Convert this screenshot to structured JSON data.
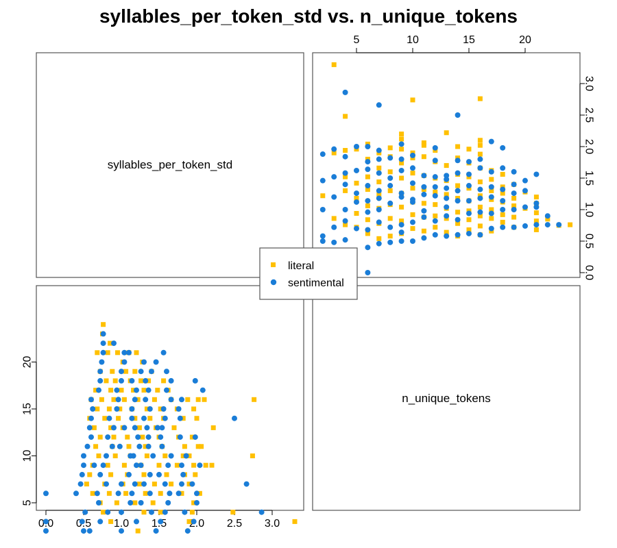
{
  "chart_data": {
    "type": "scatter",
    "title": "syllables_per_token_std vs. n_unique_tokens",
    "variables": [
      "syllables_per_token_std",
      "n_unique_tokens"
    ],
    "x_ticks": [
      0.0,
      0.5,
      1.0,
      1.5,
      2.0,
      2.5,
      3.0
    ],
    "y_ticks": [
      5,
      10,
      15,
      20
    ],
    "x_tick_labels": [
      "0.0",
      "0.5",
      "1.0",
      "1.5",
      "2.0",
      "2.5",
      "3.0"
    ],
    "y_tick_labels": [
      "5",
      "10",
      "15",
      "20"
    ],
    "xlim": [
      -0.1,
      3.4
    ],
    "ylim": [
      1,
      25
    ],
    "legend": {
      "placement": "center",
      "entries": [
        "literal",
        "sentimental"
      ]
    },
    "series": [
      {
        "name": "literal",
        "color": "#FFC000",
        "marker": "square",
        "points": [
          [
            0.76,
            24
          ],
          [
            0.75,
            23
          ],
          [
            0.85,
            22
          ],
          [
            0.68,
            21
          ],
          [
            0.82,
            21
          ],
          [
            0.95,
            21
          ],
          [
            1.1,
            21
          ],
          [
            1.2,
            21
          ],
          [
            1.02,
            20
          ],
          [
            1.28,
            20
          ],
          [
            0.72,
            19
          ],
          [
            0.88,
            19
          ],
          [
            1.06,
            19
          ],
          [
            1.18,
            19
          ],
          [
            1.4,
            19
          ],
          [
            0.8,
            18
          ],
          [
            0.92,
            18
          ],
          [
            1.12,
            18
          ],
          [
            1.26,
            18
          ],
          [
            1.36,
            18
          ],
          [
            1.56,
            18
          ],
          [
            0.66,
            17
          ],
          [
            0.86,
            17
          ],
          [
            1.0,
            17
          ],
          [
            1.16,
            17
          ],
          [
            1.3,
            17
          ],
          [
            1.48,
            17
          ],
          [
            1.62,
            17
          ],
          [
            0.6,
            16
          ],
          [
            0.74,
            16
          ],
          [
            0.9,
            16
          ],
          [
            1.04,
            16
          ],
          [
            1.22,
            16
          ],
          [
            1.44,
            16
          ],
          [
            1.66,
            16
          ],
          [
            1.88,
            16
          ],
          [
            2.02,
            16
          ],
          [
            2.1,
            16
          ],
          [
            2.76,
            16
          ],
          [
            0.68,
            15
          ],
          [
            0.84,
            15
          ],
          [
            0.98,
            15
          ],
          [
            1.14,
            15
          ],
          [
            1.34,
            15
          ],
          [
            1.52,
            15
          ],
          [
            1.74,
            15
          ],
          [
            1.96,
            15
          ],
          [
            0.58,
            14
          ],
          [
            0.78,
            14
          ],
          [
            0.96,
            14
          ],
          [
            1.18,
            14
          ],
          [
            1.38,
            14
          ],
          [
            1.56,
            14
          ],
          [
            1.82,
            14
          ],
          [
            2.0,
            14
          ],
          [
            0.64,
            13
          ],
          [
            0.86,
            13
          ],
          [
            1.02,
            13
          ],
          [
            1.24,
            13
          ],
          [
            1.46,
            13
          ],
          [
            1.7,
            13
          ],
          [
            2.22,
            13
          ],
          [
            0.72,
            12
          ],
          [
            0.9,
            12
          ],
          [
            1.08,
            12
          ],
          [
            1.28,
            12
          ],
          [
            1.5,
            12
          ],
          [
            1.76,
            12
          ],
          [
            1.94,
            12
          ],
          [
            0.66,
            11
          ],
          [
            0.88,
            11
          ],
          [
            1.1,
            11
          ],
          [
            1.32,
            11
          ],
          [
            1.54,
            11
          ],
          [
            1.84,
            11
          ],
          [
            2.02,
            11
          ],
          [
            2.06,
            11
          ],
          [
            0.7,
            10
          ],
          [
            0.92,
            10
          ],
          [
            1.12,
            10
          ],
          [
            1.34,
            10
          ],
          [
            1.58,
            10
          ],
          [
            1.82,
            10
          ],
          [
            1.9,
            10
          ],
          [
            2.74,
            10
          ],
          [
            0.62,
            9
          ],
          [
            0.82,
            9
          ],
          [
            1.04,
            9
          ],
          [
            1.26,
            9
          ],
          [
            1.5,
            9
          ],
          [
            1.74,
            9
          ],
          [
            1.96,
            9
          ],
          [
            2.12,
            9
          ],
          [
            2.2,
            9
          ],
          [
            0.58,
            8
          ],
          [
            0.86,
            8
          ],
          [
            1.08,
            8
          ],
          [
            1.3,
            8
          ],
          [
            1.6,
            8
          ],
          [
            1.84,
            8
          ],
          [
            1.98,
            8
          ],
          [
            0.54,
            7
          ],
          [
            0.78,
            7
          ],
          [
            1.02,
            7
          ],
          [
            1.24,
            7
          ],
          [
            1.44,
            7
          ],
          [
            1.66,
            7
          ],
          [
            1.9,
            7
          ],
          [
            0.62,
            6
          ],
          [
            0.84,
            6
          ],
          [
            1.06,
            6
          ],
          [
            1.32,
            6
          ],
          [
            1.52,
            6
          ],
          [
            1.8,
            6
          ],
          [
            2.04,
            6
          ],
          [
            0.72,
            5
          ],
          [
            0.94,
            5
          ],
          [
            1.18,
            5
          ],
          [
            1.42,
            5
          ],
          [
            1.96,
            5
          ],
          [
            0.76,
            4
          ],
          [
            1.3,
            4
          ],
          [
            1.52,
            4
          ],
          [
            1.94,
            4
          ],
          [
            2.48,
            4
          ],
          [
            0.86,
            3
          ],
          [
            1.9,
            3
          ],
          [
            3.3,
            3
          ],
          [
            1.22,
            2
          ]
        ]
      },
      {
        "name": "sentimental",
        "color": "#1A7DD7",
        "marker": "circle",
        "points": [
          [
            0.0,
            6
          ],
          [
            0.0,
            3
          ],
          [
            0.0,
            2
          ],
          [
            0.5,
            2
          ],
          [
            0.48,
            3
          ],
          [
            0.52,
            4
          ],
          [
            0.4,
            6
          ],
          [
            0.46,
            7
          ],
          [
            0.48,
            8
          ],
          [
            0.5,
            9
          ],
          [
            0.5,
            10
          ],
          [
            0.55,
            11
          ],
          [
            0.6,
            12
          ],
          [
            0.58,
            13
          ],
          [
            0.6,
            14
          ],
          [
            0.62,
            15
          ],
          [
            0.6,
            16
          ],
          [
            0.7,
            17
          ],
          [
            0.72,
            18
          ],
          [
            0.72,
            19
          ],
          [
            0.74,
            20
          ],
          [
            0.76,
            21
          ],
          [
            0.76,
            22
          ],
          [
            0.76,
            23
          ],
          [
            1.0,
            2
          ],
          [
            0.72,
            3
          ],
          [
            0.82,
            4
          ],
          [
            0.7,
            5
          ],
          [
            0.68,
            6
          ],
          [
            0.8,
            7
          ],
          [
            0.72,
            8
          ],
          [
            0.76,
            9
          ],
          [
            0.8,
            10
          ],
          [
            0.88,
            11
          ],
          [
            0.82,
            12
          ],
          [
            0.9,
            13
          ],
          [
            0.84,
            14
          ],
          [
            0.94,
            15
          ],
          [
            0.96,
            16
          ],
          [
            0.94,
            17
          ],
          [
            1.0,
            18
          ],
          [
            1.0,
            19
          ],
          [
            1.04,
            20
          ],
          [
            1.04,
            21
          ],
          [
            0.9,
            22
          ],
          [
            1.2,
            3
          ],
          [
            1.0,
            4
          ],
          [
            1.12,
            5
          ],
          [
            1.14,
            6
          ],
          [
            1.0,
            7
          ],
          [
            1.1,
            8
          ],
          [
            1.2,
            9
          ],
          [
            1.12,
            10
          ],
          [
            1.24,
            11
          ],
          [
            1.22,
            12
          ],
          [
            1.18,
            13
          ],
          [
            1.14,
            14
          ],
          [
            1.14,
            15
          ],
          [
            1.18,
            16
          ],
          [
            1.2,
            17
          ],
          [
            1.14,
            18
          ],
          [
            1.26,
            19
          ],
          [
            1.3,
            20
          ],
          [
            1.1,
            21
          ],
          [
            1.46,
            2
          ],
          [
            1.4,
            4
          ],
          [
            1.26,
            5
          ],
          [
            1.38,
            6
          ],
          [
            1.3,
            7
          ],
          [
            1.38,
            8
          ],
          [
            1.26,
            9
          ],
          [
            1.42,
            10
          ],
          [
            1.36,
            11
          ],
          [
            1.36,
            12
          ],
          [
            1.34,
            13
          ],
          [
            1.3,
            14
          ],
          [
            1.38,
            15
          ],
          [
            1.32,
            16
          ],
          [
            1.36,
            17
          ],
          [
            1.32,
            18
          ],
          [
            1.4,
            19
          ],
          [
            1.46,
            20
          ],
          [
            1.52,
            3
          ],
          [
            1.58,
            4
          ],
          [
            1.62,
            5
          ],
          [
            1.64,
            6
          ],
          [
            1.58,
            7
          ],
          [
            1.5,
            8
          ],
          [
            1.62,
            9
          ],
          [
            1.66,
            10
          ],
          [
            1.54,
            11
          ],
          [
            1.52,
            12
          ],
          [
            1.54,
            13
          ],
          [
            1.58,
            14
          ],
          [
            1.56,
            15
          ],
          [
            1.66,
            16
          ],
          [
            1.6,
            17
          ],
          [
            1.66,
            18
          ],
          [
            1.84,
            4
          ],
          [
            1.76,
            6
          ],
          [
            1.8,
            7
          ],
          [
            1.82,
            8
          ],
          [
            1.8,
            9
          ],
          [
            1.86,
            10
          ],
          [
            1.78,
            12
          ],
          [
            1.78,
            14
          ],
          [
            1.76,
            15
          ],
          [
            1.8,
            16
          ],
          [
            1.6,
            19
          ],
          [
            1.56,
            21
          ],
          [
            1.88,
            2
          ],
          [
            2.0,
            5
          ],
          [
            2.0,
            6
          ],
          [
            1.94,
            7
          ],
          [
            2.04,
            9
          ],
          [
            1.98,
            12
          ],
          [
            2.08,
            17
          ],
          [
            1.98,
            18
          ],
          [
            2.66,
            7
          ],
          [
            2.5,
            14
          ],
          [
            2.86,
            4
          ],
          [
            1.96,
            3
          ],
          [
            0.58,
            2
          ],
          [
            0.64,
            9
          ],
          [
            1.04,
            13
          ],
          [
            0.98,
            11
          ],
          [
            1.16,
            10
          ],
          [
            0.96,
            6
          ],
          [
            1.18,
            7
          ],
          [
            1.48,
            13
          ]
        ]
      }
    ]
  }
}
